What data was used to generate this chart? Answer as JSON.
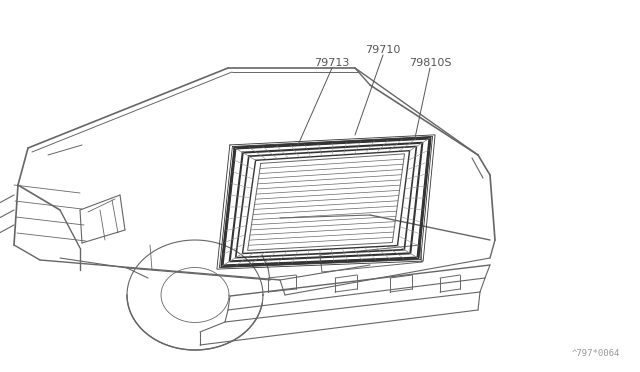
{
  "background_color": "#ffffff",
  "line_color": "#666666",
  "dark_line_color": "#333333",
  "label_color": "#555555",
  "figsize": [
    6.4,
    3.72
  ],
  "dpi": 100,
  "watermark": "^797*0064",
  "label_79710": "79710",
  "label_79713": "79713",
  "label_79810S": "79810S"
}
